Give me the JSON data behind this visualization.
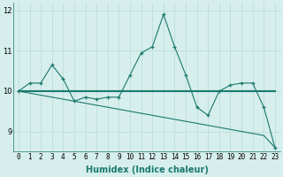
{
  "xlabel": "Humidex (Indice chaleur)",
  "x": [
    0,
    1,
    2,
    3,
    4,
    5,
    6,
    7,
    8,
    9,
    10,
    11,
    12,
    13,
    14,
    15,
    16,
    17,
    18,
    19,
    20,
    21,
    22,
    23
  ],
  "y_main": [
    10.0,
    10.2,
    10.2,
    10.65,
    10.3,
    9.75,
    9.85,
    9.8,
    9.85,
    9.85,
    10.4,
    10.95,
    11.1,
    11.9,
    11.1,
    10.4,
    9.6,
    9.4,
    10.0,
    10.15,
    10.2,
    10.2,
    9.6,
    8.6
  ],
  "y_flat": [
    10.0,
    10.0,
    10.0,
    10.0,
    10.0,
    10.0,
    10.0,
    10.0,
    10.0,
    10.0,
    10.0,
    10.0,
    10.0,
    10.0,
    10.0,
    10.0,
    10.0,
    10.0,
    10.0,
    10.0,
    10.0,
    10.0,
    10.0,
    10.0
  ],
  "y_slope": [
    10.0,
    9.95,
    9.9,
    9.85,
    9.8,
    9.75,
    9.7,
    9.65,
    9.6,
    9.55,
    9.5,
    9.45,
    9.4,
    9.35,
    9.3,
    9.25,
    9.2,
    9.15,
    9.1,
    9.05,
    9.0,
    8.95,
    8.9,
    8.6
  ],
  "line_color": "#1a7a6e",
  "bg_color": "#d6eeec",
  "grid_color": "#b8dbd8",
  "ylim": [
    8.5,
    12.2
  ],
  "yticks": [
    9,
    10,
    11,
    12
  ],
  "xticks": [
    0,
    1,
    2,
    3,
    4,
    5,
    6,
    7,
    8,
    9,
    10,
    11,
    12,
    13,
    14,
    15,
    16,
    17,
    18,
    19,
    20,
    21,
    22,
    23
  ],
  "tick_fontsize": 5.5,
  "xlabel_fontsize": 7.0
}
